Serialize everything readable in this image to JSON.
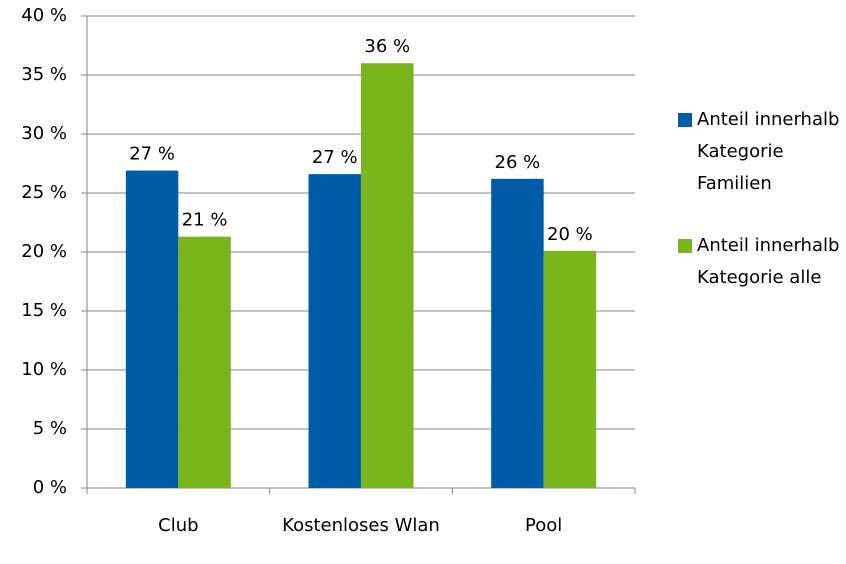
{
  "chart_data": {
    "type": "bar",
    "categories": [
      "Club",
      "Kostenloses Wlan",
      "Pool"
    ],
    "series": [
      {
        "name": "Anteil innerhalb Kategorie Familien",
        "color": "#005ca9",
        "values": [
          26.9,
          26.6,
          26.2
        ],
        "value_labels": [
          "27 %",
          "27 %",
          "26 %"
        ]
      },
      {
        "name": "Anteil innerhalb Kategorie alle",
        "color": "#7ab51d",
        "values": [
          21.3,
          36,
          20.1
        ],
        "value_labels": [
          "21 %",
          "36 %",
          "20 %"
        ]
      }
    ],
    "ylim": [
      0,
      40
    ],
    "yticks": [
      {
        "value": 0,
        "label": "0 %"
      },
      {
        "value": 5,
        "label": "5 %"
      },
      {
        "value": 10,
        "label": "10 %"
      },
      {
        "value": 15,
        "label": "15 %"
      },
      {
        "value": 20,
        "label": "20 %"
      },
      {
        "value": 25,
        "label": "25 %"
      },
      {
        "value": 30,
        "label": "30 %"
      },
      {
        "value": 35,
        "label": "35 %"
      },
      {
        "value": 40,
        "label": "40 %"
      }
    ],
    "grid": true,
    "legend": "right"
  }
}
